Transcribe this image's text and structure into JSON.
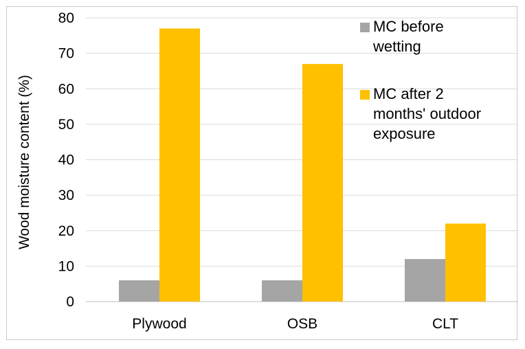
{
  "chart_data": {
    "type": "bar",
    "title": "",
    "xlabel": "",
    "ylabel": "Wood moisture content (%)",
    "ylim": [
      0,
      80
    ],
    "yticks": [
      0,
      10,
      20,
      30,
      40,
      50,
      60,
      70,
      80
    ],
    "categories": [
      "Plywood",
      "OSB",
      "CLT"
    ],
    "series": [
      {
        "name": "MC before wetting",
        "values": [
          6,
          6,
          12
        ],
        "color": "#a5a5a5"
      },
      {
        "name": "MC after 2 months' outdoor exposure",
        "values": [
          77,
          67,
          22
        ],
        "color": "#ffc000"
      }
    ],
    "grid": true,
    "legend_position": "top-right"
  },
  "legend": {
    "items": [
      {
        "lines": [
          "MC before",
          "wetting"
        ],
        "color": "#a5a5a5"
      },
      {
        "lines": [
          "MC after 2",
          "months' outdoor",
          "exposure"
        ],
        "color": "#ffc000"
      }
    ]
  }
}
